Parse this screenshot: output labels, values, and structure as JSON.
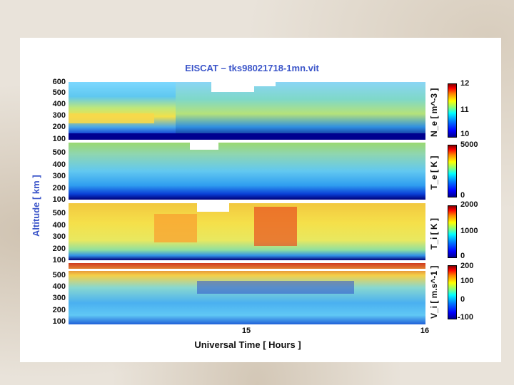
{
  "chart_data": {
    "type": "heatmap",
    "title": "EISCAT – tks98021718-1mn.vit",
    "xlabel": "Universal Time [ Hours ]",
    "ylabel": "Altitude [ km ]",
    "x_ticks": [
      "15",
      "16"
    ],
    "panels": [
      {
        "name": "Ne",
        "colorbar_label": "N_e [ m^-3 ]",
        "colorbar_ticks": [
          "12",
          "11",
          "10"
        ],
        "y_ticks": [
          "600",
          "500",
          "400",
          "300",
          "200",
          "100"
        ],
        "colormap": "jet"
      },
      {
        "name": "Te",
        "colorbar_label": "T_e [ K ]",
        "colorbar_ticks": [
          "5000",
          "0"
        ],
        "y_ticks": [
          "500",
          "400",
          "300",
          "200",
          "100"
        ],
        "colormap": "jet"
      },
      {
        "name": "Ti",
        "colorbar_label": "T_i [ K ]",
        "colorbar_ticks": [
          "2000",
          "1000",
          "0"
        ],
        "y_ticks": [
          "500",
          "400",
          "300",
          "200",
          "100"
        ],
        "colormap": "jet"
      },
      {
        "name": "Vi",
        "colorbar_label": "V_i [ m.s^-1 ]",
        "colorbar_ticks": [
          "200",
          "100",
          "0",
          "-100"
        ],
        "y_ticks": [
          "500",
          "400",
          "300",
          "200",
          "100"
        ],
        "colormap": "jet"
      }
    ]
  }
}
